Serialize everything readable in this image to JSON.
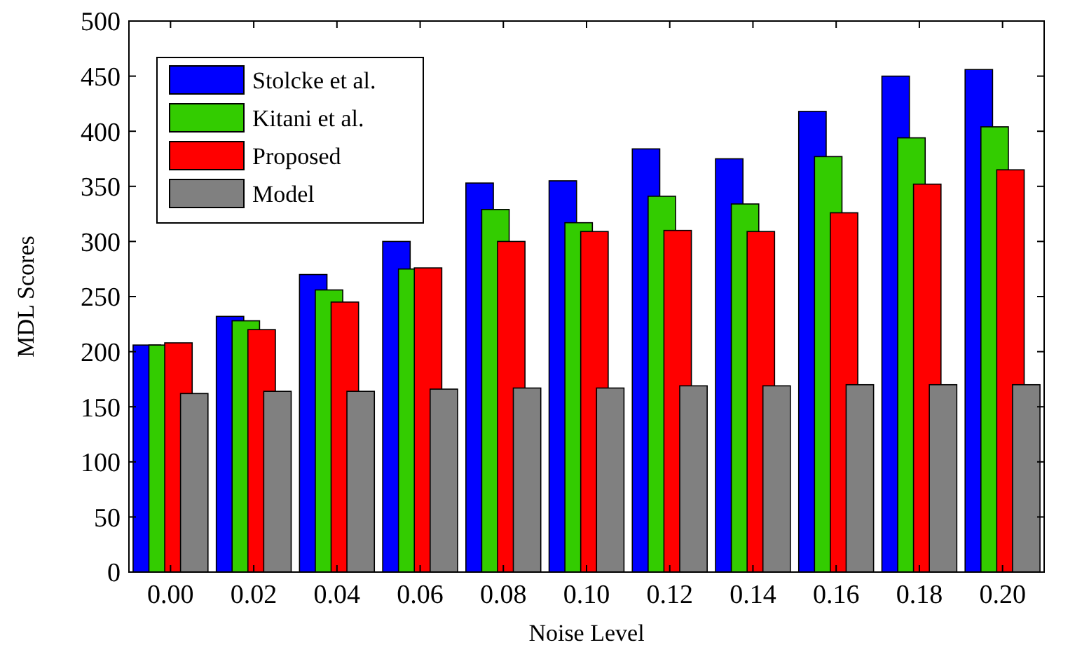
{
  "chart_data": {
    "type": "bar",
    "xlabel": "Noise Level",
    "ylabel": "MDL Scores",
    "categories": [
      "0.00",
      "0.02",
      "0.04",
      "0.06",
      "0.08",
      "0.10",
      "0.12",
      "0.14",
      "0.16",
      "0.18",
      "0.20"
    ],
    "series": [
      {
        "name": "Stolcke et al.",
        "color": "#0000ff",
        "values": [
          206,
          232,
          270,
          300,
          353,
          355,
          384,
          375,
          418,
          450,
          456
        ]
      },
      {
        "name": "Kitani et al.",
        "color": "#33cc00",
        "values": [
          206,
          228,
          256,
          275,
          329,
          317,
          341,
          334,
          377,
          394,
          404
        ]
      },
      {
        "name": "Proposed",
        "color": "#ff0000",
        "values": [
          208,
          220,
          245,
          276,
          300,
          309,
          310,
          309,
          326,
          352,
          365
        ]
      },
      {
        "name": "Model",
        "color": "#808080",
        "values": [
          162,
          164,
          164,
          166,
          167,
          167,
          169,
          169,
          170,
          170,
          170
        ]
      }
    ],
    "ylim": [
      0,
      500
    ],
    "yticks": [
      0,
      50,
      100,
      150,
      200,
      250,
      300,
      350,
      400,
      450,
      500
    ],
    "grid": false,
    "legend": "top left"
  }
}
